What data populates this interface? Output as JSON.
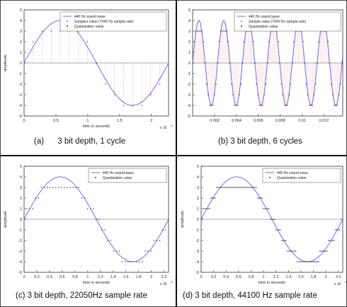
{
  "colors": {
    "wave": "#6b6bff",
    "samples": "#e0505a",
    "quant": "#111111",
    "grid": "#c8c8c8"
  },
  "captions": {
    "a": "(a)      3 bit depth, 1 cycle",
    "b": "(b) 3 bit depth, 6 cycles",
    "c": "(c) 3 bit depth, 22050Hz sample rate",
    "d": "(d) 3 bit depth, 44100 Hz sample rate"
  },
  "chart_data": [
    {
      "id": "a",
      "type": "line",
      "frequency_hz": 440,
      "amplitude": 4,
      "sample_rate_hz": 7040,
      "xlabel": "time in seconds",
      "ylabel": "amplitude",
      "x_multiplier_label": "x 10",
      "x_multiplier_exp": "-3",
      "xlim": [
        0,
        0.00227
      ],
      "ylim": [
        -5,
        5
      ],
      "xticks": [
        0,
        0.0005,
        0.001,
        0.0015,
        0.002
      ],
      "xtick_labels": [
        "0",
        "0.5",
        "1",
        "1.5",
        "2"
      ],
      "yticks": [
        5,
        4,
        3,
        2,
        1,
        0,
        -1,
        -2,
        -3,
        -4,
        -5
      ],
      "legend": [
        "440 Hz sound wave",
        "Samples value (7040 Hz sample rate)",
        "Quantization value"
      ],
      "series": [
        {
          "name": "440 Hz sound wave",
          "kind": "sine"
        },
        {
          "name": "Samples value (7040 Hz sample rate)",
          "kind": "samples",
          "stems": true
        },
        {
          "name": "Quantization value",
          "kind": "quantized",
          "levels": [
            -4,
            -3,
            -2,
            -1,
            0,
            1,
            2,
            3
          ]
        }
      ]
    },
    {
      "id": "b",
      "type": "line",
      "frequency_hz": 440,
      "amplitude": 4,
      "sample_rate_hz": 7040,
      "xlabel": "",
      "ylabel": "",
      "xlim": [
        0,
        0.0137
      ],
      "ylim": [
        -5,
        5
      ],
      "xticks": [
        0.002,
        0.004,
        0.006,
        0.008,
        0.01,
        0.012
      ],
      "xtick_labels": [
        "0.002",
        "0.004",
        "0.006",
        "0.008",
        "0.01",
        "0.012"
      ],
      "yticks": [
        5,
        4,
        3,
        2,
        1,
        0,
        -1,
        -2,
        -3,
        -4,
        -5
      ],
      "legend": [
        "440 Hz sound wave",
        "Sample value (7040 Hz sample rate)",
        "Quantization value"
      ],
      "series": [
        {
          "name": "440 Hz sound wave",
          "kind": "sine"
        },
        {
          "name": "Sample value (7040 Hz sample rate)",
          "kind": "samples",
          "stems": true
        },
        {
          "name": "Quantization value",
          "kind": "quantized",
          "levels": [
            -4,
            -3,
            -2,
            -1,
            0,
            1,
            2,
            3
          ]
        }
      ]
    },
    {
      "id": "c",
      "type": "line",
      "frequency_hz": 440,
      "amplitude": 4,
      "sample_rate_hz": 22050,
      "xlabel": "time in seconds",
      "ylabel": "amplitude",
      "x_multiplier_label": "x 10",
      "x_multiplier_exp": "-3",
      "xlim": [
        0,
        0.00227
      ],
      "ylim": [
        -5,
        5
      ],
      "xticks": [
        0,
        0.0002,
        0.0004,
        0.0006,
        0.0008,
        0.001,
        0.0012,
        0.0014,
        0.0016,
        0.0018,
        0.002,
        0.0022
      ],
      "xtick_labels": [
        "0",
        "0.2",
        "0.4",
        "0.6",
        "0.8",
        "1",
        "1.2",
        "1.4",
        "1.6",
        "1.8",
        "2",
        "2.2"
      ],
      "yticks": [
        5,
        4,
        3,
        2,
        1,
        0,
        -1,
        -2,
        -3,
        -4,
        -5
      ],
      "legend": [
        "440 Hz sound wave",
        "Quantization value"
      ],
      "series": [
        {
          "name": "440 Hz sound wave",
          "kind": "sine"
        },
        {
          "name": "Quantization value",
          "kind": "quantized",
          "levels": [
            -4,
            -3,
            -2,
            -1,
            0,
            1,
            2,
            3
          ]
        }
      ]
    },
    {
      "id": "d",
      "type": "line",
      "frequency_hz": 440,
      "amplitude": 4,
      "sample_rate_hz": 44100,
      "xlabel": "time in seconds",
      "ylabel": "amplitude",
      "x_multiplier_label": "x 10",
      "x_multiplier_exp": "-3",
      "xlim": [
        0,
        0.00227
      ],
      "ylim": [
        -5,
        5
      ],
      "xticks": [
        0,
        0.0002,
        0.0004,
        0.0006,
        0.0008,
        0.001,
        0.0012,
        0.0014,
        0.0016,
        0.0018,
        0.002,
        0.0022
      ],
      "xtick_labels": [
        "0",
        "0.2",
        "0.4",
        "0.6",
        "0.8",
        "1",
        "1.2",
        "1.4",
        "1.6",
        "1.8",
        "2",
        "2.2"
      ],
      "yticks": [
        5,
        4,
        3,
        2,
        1,
        0,
        -1,
        -2,
        -3,
        -4,
        -5
      ],
      "legend": [
        "440 Hz sound wave",
        "Quantization value"
      ],
      "series": [
        {
          "name": "440 Hz sound wave",
          "kind": "sine"
        },
        {
          "name": "Quantization value",
          "kind": "quantized",
          "levels": [
            -4,
            -3,
            -2,
            -1,
            0,
            1,
            2,
            3
          ]
        }
      ]
    }
  ]
}
